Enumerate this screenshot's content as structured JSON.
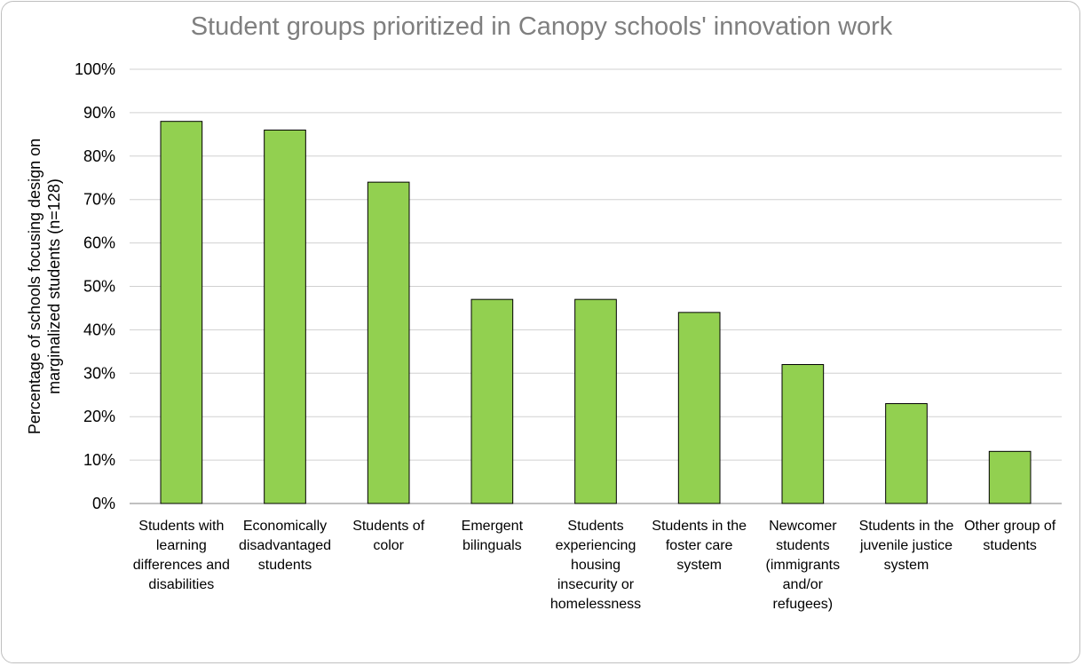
{
  "chart_data": {
    "type": "bar",
    "title": "Student groups prioritized in Canopy schools' innovation work",
    "xlabel": "",
    "ylabel_lines": [
      "Percentage of schools focusing design on",
      "marginalized students  (n=128)"
    ],
    "ylim": [
      0,
      100
    ],
    "yticks": [
      0,
      10,
      20,
      30,
      40,
      50,
      60,
      70,
      80,
      90,
      100
    ],
    "ytick_suffix": "%",
    "grid": true,
    "legend": "none",
    "bar_color": "#92d050",
    "categories": [
      [
        "Students with",
        "learning",
        "differences and",
        "disabilities"
      ],
      [
        "Economically",
        "disadvantaged",
        "students"
      ],
      [
        "Students of",
        "color"
      ],
      [
        "Emergent",
        "bilinguals"
      ],
      [
        "Students",
        "experiencing",
        "housing",
        "insecurity or",
        "homelessness"
      ],
      [
        "Students in the",
        "foster care",
        "system"
      ],
      [
        "Newcomer",
        "students",
        "(immigrants",
        "and/or",
        "refugees)"
      ],
      [
        "Students in the",
        "juvenile justice",
        "system"
      ],
      [
        "Other group of",
        "students"
      ]
    ],
    "values": [
      88,
      86,
      74,
      47,
      47,
      44,
      32,
      23,
      12
    ]
  }
}
